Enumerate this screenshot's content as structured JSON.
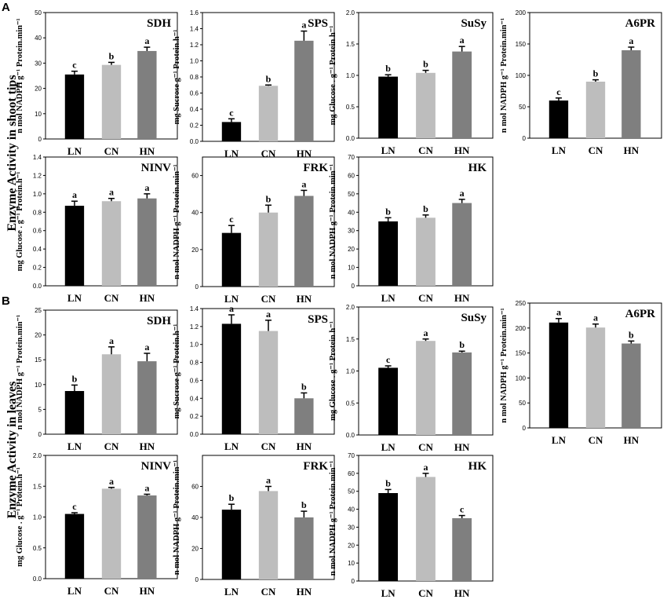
{
  "figure": {
    "panel_A_letter": "A",
    "panel_B_letter": "B",
    "section_A_title": "Enzyme Activity in shoot tips",
    "section_B_title": "Enzyme Activity in leaves",
    "colors": {
      "LN": "#000000",
      "CN": "#bdbdbd",
      "HN": "#7f7f7f"
    }
  },
  "chart_data": [
    {
      "section": "A",
      "type": "bar",
      "title": "SDH",
      "ylabel": "n mol NADPH g⁻¹ Protein.min⁻¹",
      "ylim": [
        0,
        50
      ],
      "yticks": [
        0,
        10,
        20,
        30,
        40,
        50
      ],
      "categories": [
        "LN",
        "CN",
        "HN"
      ],
      "values": [
        25.5,
        29.3,
        34.8
      ],
      "errors": [
        1.3,
        1.0,
        1.5
      ],
      "letters": [
        "c",
        "b",
        "a"
      ]
    },
    {
      "section": "A",
      "type": "bar",
      "title": "SPS",
      "ylabel": "mg Sucrose g⁻¹ Protein.h⁻¹",
      "ylim": [
        0,
        1.6
      ],
      "yticks": [
        "0.0",
        "0.2",
        "0.4",
        "0.6",
        "0.8",
        "1.0",
        "1.2",
        "1.4",
        "1.6"
      ],
      "categories": [
        "LN",
        "CN",
        "HN"
      ],
      "values": [
        0.24,
        0.69,
        1.25
      ],
      "errors": [
        0.04,
        0.01,
        0.12
      ],
      "letters": [
        "c",
        "b",
        "a"
      ]
    },
    {
      "section": "A",
      "type": "bar",
      "title": "SuSy",
      "ylabel": "mg Glucose . g⁻¹ Protein.h⁻¹",
      "ylim": [
        0,
        2.0
      ],
      "yticks": [
        "0.0",
        "0.5",
        "1.0",
        "1.5",
        "2.0"
      ],
      "categories": [
        "LN",
        "CN",
        "HN"
      ],
      "values": [
        0.98,
        1.04,
        1.38
      ],
      "errors": [
        0.03,
        0.04,
        0.08
      ],
      "letters": [
        "b",
        "b",
        "a"
      ]
    },
    {
      "section": "A",
      "type": "bar",
      "title": "A6PR",
      "ylabel": "n mol NADPH g⁻¹ Protein.min⁻¹",
      "ylim": [
        0,
        200
      ],
      "yticks": [
        0,
        50,
        100,
        150,
        200
      ],
      "categories": [
        "LN",
        "CN",
        "HN"
      ],
      "values": [
        60,
        90,
        140
      ],
      "errors": [
        4,
        3,
        5
      ],
      "letters": [
        "c",
        "b",
        "a"
      ]
    },
    {
      "section": "A",
      "type": "bar",
      "title": "NINV",
      "ylabel": "mg Glucose . g⁻¹ Protein.h⁻¹",
      "ylim": [
        0,
        1.4
      ],
      "yticks": [
        "0.0",
        "0.2",
        "0.4",
        "0.6",
        "0.8",
        "1.0",
        "1.2",
        "1.4"
      ],
      "categories": [
        "LN",
        "CN",
        "HN"
      ],
      "values": [
        0.87,
        0.92,
        0.95
      ],
      "errors": [
        0.05,
        0.03,
        0.05
      ],
      "letters": [
        "a",
        "a",
        "a"
      ]
    },
    {
      "section": "A",
      "type": "bar",
      "title": "FRK",
      "ylabel": "n mol NADPH g⁻¹ Protein.min⁻¹",
      "ylim": [
        0,
        70
      ],
      "yticks": [
        0,
        20,
        40,
        60
      ],
      "categories": [
        "LN",
        "CN",
        "HN"
      ],
      "values": [
        29,
        40,
        49
      ],
      "errors": [
        4,
        4,
        3
      ],
      "letters": [
        "c",
        "b",
        "a"
      ]
    },
    {
      "section": "A",
      "type": "bar",
      "title": "HK",
      "ylabel": "n mol NADPH g⁻¹ Protein.min⁻¹",
      "ylim": [
        0,
        70
      ],
      "yticks": [
        0,
        10,
        20,
        30,
        40,
        50,
        60,
        70
      ],
      "categories": [
        "LN",
        "CN",
        "HN"
      ],
      "values": [
        35,
        37,
        45
      ],
      "errors": [
        2,
        1.5,
        2
      ],
      "letters": [
        "b",
        "b",
        "a"
      ]
    },
    {
      "section": "B",
      "type": "bar",
      "title": "SDH",
      "ylabel": "n mol NADPH g⁻¹ Protein.min⁻¹",
      "ylim": [
        0,
        25
      ],
      "yticks": [
        0,
        5,
        10,
        15,
        20,
        25
      ],
      "categories": [
        "LN",
        "CN",
        "HN"
      ],
      "values": [
        8.7,
        16.1,
        14.7
      ],
      "errors": [
        1.2,
        1.5,
        1.6
      ],
      "letters": [
        "b",
        "a",
        "a"
      ]
    },
    {
      "section": "B",
      "type": "bar",
      "title": "SPS",
      "ylabel": "mg Sucrose g⁻¹ Protein.h⁻¹",
      "ylim": [
        0,
        1.4
      ],
      "yticks": [
        "0.0",
        "0.2",
        "0.4",
        "0.6",
        "0.8",
        "1.0",
        "1.2",
        "1.4"
      ],
      "categories": [
        "LN",
        "CN",
        "HN"
      ],
      "values": [
        1.23,
        1.15,
        0.4
      ],
      "errors": [
        0.1,
        0.12,
        0.06
      ],
      "letters": [
        "a",
        "a",
        "b"
      ]
    },
    {
      "section": "B",
      "type": "bar",
      "title": "SuSy",
      "ylabel": "mg Glucose . g⁻¹ Protein.h⁻¹",
      "ylim": [
        0,
        2.0
      ],
      "yticks": [
        "0.0",
        "0.5",
        "1.0",
        "1.5",
        "2.0"
      ],
      "categories": [
        "LN",
        "CN",
        "HN"
      ],
      "values": [
        1.05,
        1.47,
        1.29
      ],
      "errors": [
        0.03,
        0.03,
        0.02
      ],
      "letters": [
        "c",
        "a",
        "b"
      ]
    },
    {
      "section": "B",
      "type": "bar",
      "title": "A6PR",
      "ylabel": "n mol NADPH g⁻¹ Protein.min⁻¹",
      "ylim": [
        0,
        250
      ],
      "yticks": [
        0,
        50,
        100,
        150,
        200,
        250
      ],
      "categories": [
        "LN",
        "CN",
        "HN"
      ],
      "values": [
        211,
        201,
        169
      ],
      "errors": [
        8,
        7,
        5
      ],
      "letters": [
        "a",
        "a",
        "b"
      ]
    },
    {
      "section": "B",
      "type": "bar",
      "title": "NINV",
      "ylabel": "mg Glucose . g⁻¹ Protein.h⁻¹",
      "ylim": [
        0,
        2.0
      ],
      "yticks": [
        "0.0",
        "0.5",
        "1.0",
        "1.5",
        "2.0"
      ],
      "categories": [
        "LN",
        "CN",
        "HN"
      ],
      "values": [
        1.05,
        1.46,
        1.35
      ],
      "errors": [
        0.02,
        0.02,
        0.02
      ],
      "letters": [
        "c",
        "a",
        "a"
      ]
    },
    {
      "section": "B",
      "type": "bar",
      "title": "FRK",
      "ylabel": "n mol NADPH g⁻¹ Protein.min⁻¹",
      "ylim": [
        0,
        80
      ],
      "yticks": [
        0,
        20,
        40,
        60
      ],
      "categories": [
        "LN",
        "CN",
        "HN"
      ],
      "values": [
        45,
        57,
        40
      ],
      "errors": [
        3.5,
        3,
        4
      ],
      "letters": [
        "b",
        "a",
        "b"
      ]
    },
    {
      "section": "B",
      "type": "bar",
      "title": "HK",
      "ylabel": "n mol NADPH g⁻¹ Protein.min⁻¹",
      "ylim": [
        0,
        70
      ],
      "yticks": [
        0,
        10,
        20,
        30,
        40,
        50,
        60,
        70
      ],
      "categories": [
        "LN",
        "CN",
        "HN"
      ],
      "values": [
        49,
        58,
        35
      ],
      "errors": [
        2,
        2,
        1.5
      ],
      "letters": [
        "b",
        "a",
        "c"
      ]
    }
  ]
}
